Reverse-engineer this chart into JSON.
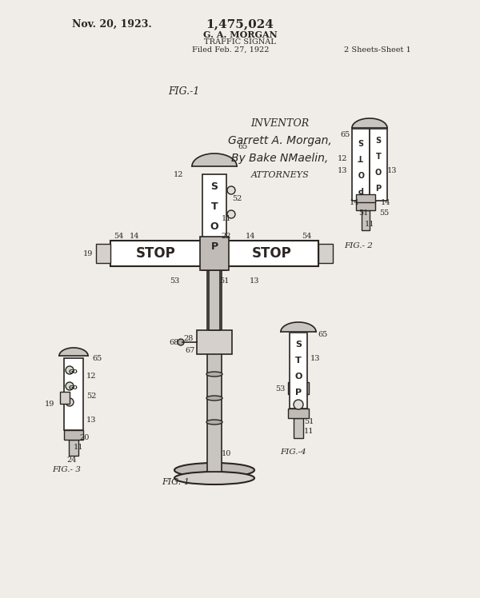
{
  "bg_color": "#f0ede8",
  "ink_color": "#2a2520",
  "title_left": "Nov. 20, 1923.",
  "title_center1": "G. A. MORGAN",
  "title_center2": "TRAFFIC SIGNAL",
  "title_center3": "Filed Feb. 27, 1922",
  "title_right1": "1,475,024",
  "title_right2": "2 Sheets-Sheet 1",
  "fig_label1": "FIG.-1",
  "fig_label2": "FIG.- 2",
  "fig_label3": "FIG.- 3",
  "fig_label4": "FIG.-4",
  "inventor_line1": "INVENTOR",
  "inventor_line2": "Garrett A. Morgan,",
  "inventor_line3": "By Bake NMaelin,",
  "inventor_line4": "ATTORNEYS"
}
